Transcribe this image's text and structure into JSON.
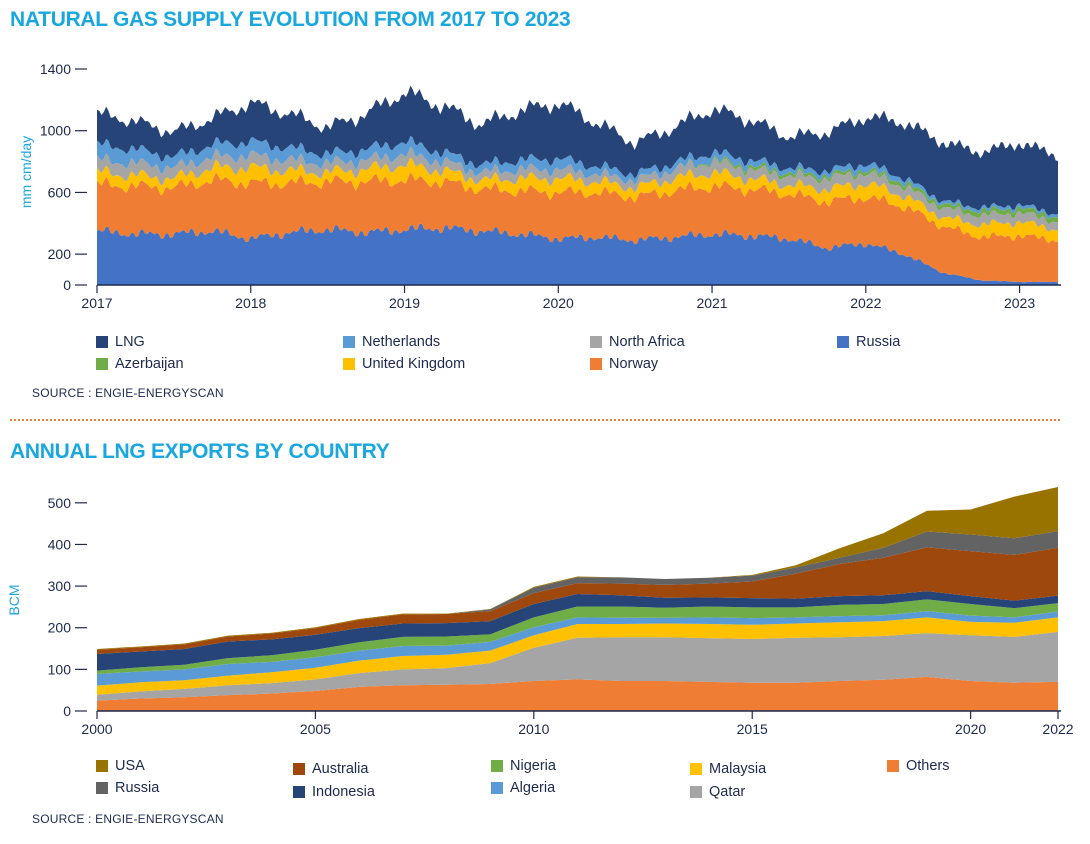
{
  "chart_data": [
    {
      "type": "area",
      "stacked": true,
      "title": "NATURAL GAS SUPPLY EVOLUTION FROM 2017 TO 2023",
      "ylabel": "mm cm/day",
      "xlabel": "",
      "ylim": [
        0,
        1400
      ],
      "yticks": [
        0,
        200,
        600,
        1000,
        1400
      ],
      "xticks": [
        "2017",
        "2018",
        "2019",
        "2020",
        "2021",
        "2022",
        "2023"
      ],
      "x": [
        2017.0,
        2017.25,
        2017.5,
        2017.75,
        2018.0,
        2018.25,
        2018.5,
        2018.75,
        2019.0,
        2019.25,
        2019.5,
        2019.75,
        2020.0,
        2020.25,
        2020.5,
        2020.75,
        2021.0,
        2021.25,
        2021.5,
        2021.75,
        2022.0,
        2022.25,
        2022.5,
        2022.75,
        2023.0,
        2023.25
      ],
      "series": [
        {
          "name": "Russia",
          "color": "#4472c4",
          "values": [
            350,
            330,
            330,
            350,
            300,
            340,
            360,
            340,
            360,
            370,
            350,
            330,
            300,
            310,
            290,
            310,
            330,
            320,
            300,
            240,
            270,
            200,
            80,
            30,
            20,
            20
          ]
        },
        {
          "name": "Norway",
          "color": "#ef7d33",
          "values": [
            300,
            310,
            300,
            330,
            360,
            320,
            310,
            330,
            320,
            300,
            270,
            280,
            300,
            290,
            280,
            300,
            310,
            300,
            290,
            300,
            300,
            310,
            300,
            280,
            300,
            270
          ]
        },
        {
          "name": "United Kingdom",
          "color": "#ffc000",
          "values": [
            80,
            70,
            60,
            80,
            100,
            80,
            60,
            80,
            100,
            70,
            60,
            80,
            90,
            70,
            60,
            80,
            90,
            70,
            60,
            80,
            90,
            70,
            60,
            80,
            90,
            70
          ]
        },
        {
          "name": "North Africa",
          "color": "#a5a5a5",
          "values": [
            80,
            80,
            70,
            70,
            80,
            70,
            60,
            60,
            70,
            60,
            50,
            60,
            60,
            50,
            50,
            60,
            70,
            60,
            60,
            70,
            70,
            60,
            60,
            60,
            60,
            50
          ]
        },
        {
          "name": "Azerbaijan",
          "color": "#70ad47",
          "values": [
            0,
            0,
            0,
            0,
            0,
            0,
            0,
            0,
            0,
            0,
            0,
            0,
            0,
            0,
            0,
            0,
            10,
            20,
            20,
            20,
            20,
            25,
            25,
            30,
            30,
            30
          ]
        },
        {
          "name": "Netherlands",
          "color": "#5b9bd5",
          "values": [
            100,
            90,
            70,
            80,
            90,
            80,
            60,
            70,
            80,
            60,
            50,
            60,
            70,
            50,
            40,
            40,
            50,
            40,
            30,
            30,
            40,
            30,
            20,
            20,
            20,
            20
          ]
        },
        {
          "name": "LNG",
          "color": "#264478",
          "values": [
            200,
            180,
            160,
            170,
            250,
            220,
            170,
            230,
            320,
            300,
            260,
            320,
            360,
            280,
            200,
            230,
            280,
            260,
            200,
            250,
            300,
            360,
            380,
            360,
            400,
            380
          ]
        }
      ],
      "legend": [
        "LNG",
        "Netherlands",
        "North Africa",
        "Russia",
        "Azerbaijan",
        "United Kingdom",
        "Norway"
      ],
      "source": "SOURCE : ENGIE-ENERGYSCAN"
    },
    {
      "type": "area",
      "stacked": true,
      "title": "ANNUAL LNG EXPORTS BY COUNTRY",
      "ylabel": "BCM",
      "xlabel": "",
      "ylim": [
        0,
        550
      ],
      "yticks": [
        0,
        100,
        200,
        300,
        400,
        500
      ],
      "xticks": [
        "2000",
        "2005",
        "2010",
        "2015",
        "2020",
        "2022"
      ],
      "x": [
        2000,
        2001,
        2002,
        2003,
        2004,
        2005,
        2006,
        2007,
        2008,
        2009,
        2010,
        2011,
        2012,
        2013,
        2014,
        2015,
        2016,
        2017,
        2018,
        2019,
        2020,
        2021,
        2022
      ],
      "series": [
        {
          "name": "Others",
          "color": "#ef7d33",
          "values": [
            25,
            30,
            33,
            38,
            42,
            48,
            58,
            62,
            63,
            65,
            72,
            76,
            72,
            72,
            70,
            68,
            68,
            72,
            75,
            82,
            72,
            68,
            70
          ]
        },
        {
          "name": "Qatar",
          "color": "#a5a5a5",
          "values": [
            14,
            17,
            20,
            24,
            25,
            28,
            33,
            38,
            40,
            50,
            80,
            100,
            105,
            105,
            105,
            105,
            108,
            105,
            105,
            105,
            110,
            110,
            120
          ]
        },
        {
          "name": "Malaysia",
          "color": "#ffc000",
          "values": [
            22,
            22,
            21,
            23,
            26,
            28,
            30,
            32,
            32,
            30,
            30,
            33,
            32,
            33,
            34,
            34,
            34,
            36,
            36,
            38,
            32,
            34,
            35
          ]
        },
        {
          "name": "Algeria",
          "color": "#5b9bd5",
          "values": [
            28,
            26,
            26,
            28,
            25,
            25,
            24,
            24,
            22,
            21,
            19,
            16,
            15,
            14,
            16,
            16,
            15,
            15,
            14,
            15,
            15,
            13,
            14
          ]
        },
        {
          "name": "Nigeria",
          "color": "#70ad47",
          "values": [
            8,
            10,
            11,
            14,
            16,
            18,
            20,
            22,
            22,
            18,
            24,
            26,
            27,
            24,
            26,
            26,
            24,
            27,
            27,
            28,
            28,
            22,
            20
          ]
        },
        {
          "name": "Indonesia",
          "color": "#264478",
          "values": [
            40,
            38,
            38,
            40,
            38,
            36,
            34,
            32,
            32,
            32,
            32,
            30,
            27,
            24,
            22,
            22,
            21,
            21,
            21,
            20,
            19,
            18,
            18
          ]
        },
        {
          "name": "Australia",
          "color": "#9e480e",
          "values": [
            10,
            10,
            11,
            12,
            14,
            16,
            20,
            22,
            22,
            24,
            26,
            26,
            28,
            31,
            33,
            40,
            60,
            77,
            90,
            105,
            108,
            110,
            115
          ]
        },
        {
          "name": "Russia",
          "color": "#636363",
          "values": [
            0,
            0,
            0,
            0,
            0,
            0,
            0,
            0,
            0,
            4,
            13,
            14,
            15,
            14,
            14,
            14,
            15,
            15,
            24,
            38,
            40,
            40,
            40
          ]
        },
        {
          "name": "USA",
          "color": "#997300",
          "values": [
            2,
            2,
            2,
            2,
            2,
            2,
            2,
            2,
            1,
            1,
            2,
            2,
            0,
            0,
            0,
            2,
            5,
            23,
            35,
            50,
            60,
            100,
            106
          ]
        }
      ],
      "legend": [
        "USA",
        "Russia",
        "Australia",
        "Indonesia",
        "Nigeria",
        "Algeria",
        "Malaysia",
        "Qatar",
        "Others"
      ],
      "source": "SOURCE : ENGIE-ENERGYSCAN"
    }
  ]
}
